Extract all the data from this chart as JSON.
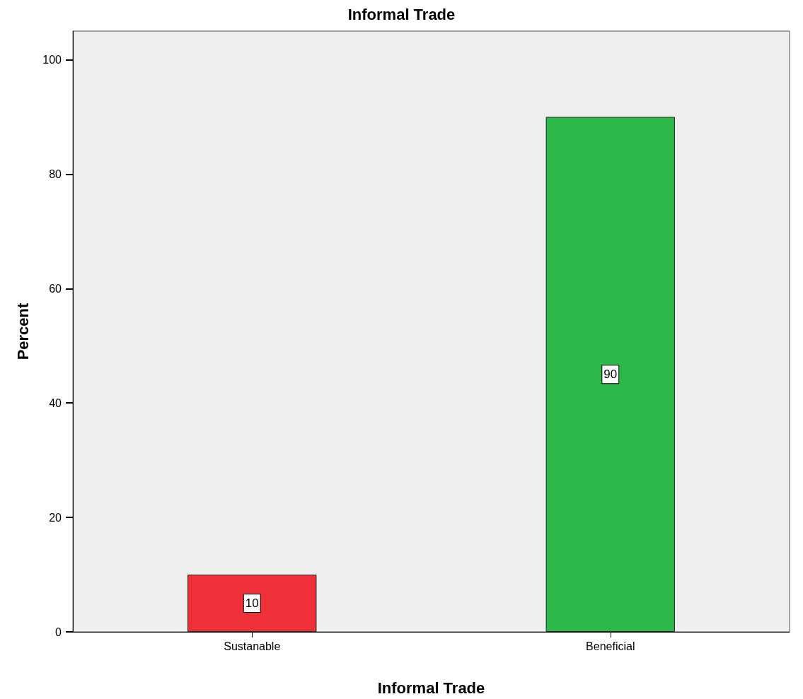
{
  "chart_data": {
    "type": "bar",
    "title": "Informal Trade",
    "xlabel": "Informal Trade",
    "ylabel": "Percent",
    "categories": [
      "Sustanable",
      "Beneficial"
    ],
    "values": [
      10,
      90
    ],
    "colors": [
      "#ef3038",
      "#2db84a"
    ],
    "ylim": [
      0,
      105
    ],
    "yticks": [
      0,
      20,
      40,
      60,
      80,
      100
    ],
    "data_labels": true,
    "grid": false
  }
}
